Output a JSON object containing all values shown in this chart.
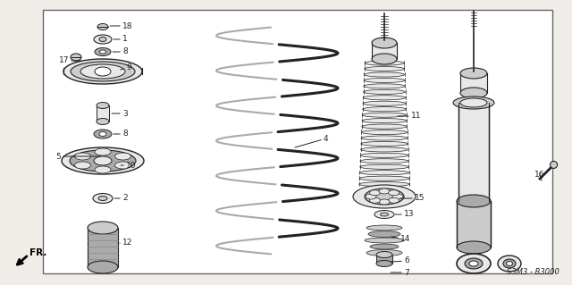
{
  "bg_color": "#f0ede8",
  "border_color": "#666666",
  "line_color": "#222222",
  "diagram_code": "S3M3 - B3000",
  "white": "#ffffff",
  "gray1": "#cccccc",
  "gray2": "#aaaaaa",
  "gray3": "#888888",
  "gray_light": "#e8e8e8"
}
